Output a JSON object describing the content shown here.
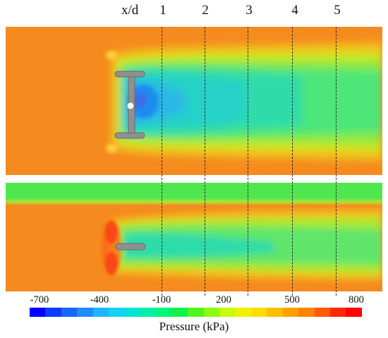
{
  "figure": {
    "xd_label": "x/d",
    "stations": [
      "1",
      "2",
      "3",
      "4",
      "5"
    ],
    "colorbar_title": "Pressure (kPa)",
    "colorbar_ticks": [
      "-700",
      "-400",
      "-100",
      "200",
      "500",
      "800"
    ],
    "colorbar_colors": [
      "#0000ff",
      "#0a3cff",
      "#1565ff",
      "#1e8cff",
      "#1eb4ff",
      "#14d2f0",
      "#00e6d2",
      "#00f0aa",
      "#00f578",
      "#14f046",
      "#50f51e",
      "#8cfa14",
      "#c8fa0a",
      "#f0f000",
      "#ffdc00",
      "#ffbe00",
      "#ffa000",
      "#ff8200",
      "#ff5a00",
      "#ff2800",
      "#ff0000"
    ]
  }
}
